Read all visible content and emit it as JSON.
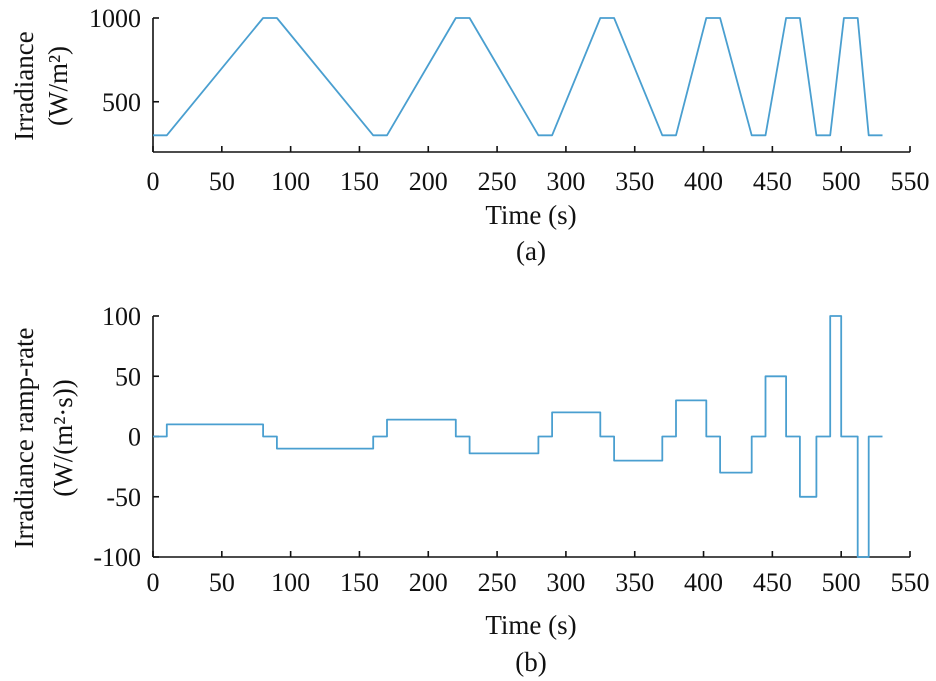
{
  "colors": {
    "series": "#4a9fd0",
    "axis": "#111111"
  },
  "chart_data": [
    {
      "type": "line",
      "caption": "(a)",
      "xlabel": "Time (s)",
      "ylabel": [
        "Irradiance",
        "(W/m²)"
      ],
      "xlim": [
        0,
        550
      ],
      "ylim": [
        200,
        1000
      ],
      "xticks": [
        0,
        50,
        100,
        150,
        200,
        250,
        300,
        350,
        400,
        450,
        500,
        550
      ],
      "xtick_labels": [
        "0",
        "50",
        "100",
        "150",
        "200",
        "250",
        "300",
        "350",
        "400",
        "450",
        "500",
        "550"
      ],
      "yticks": [
        500,
        1000
      ],
      "ytick_labels": [
        "500",
        "1000"
      ],
      "grid": false,
      "x": [
        0,
        10,
        80,
        90,
        160,
        170,
        220,
        230,
        280,
        290,
        325,
        335,
        370,
        380,
        402,
        412,
        435,
        445,
        460,
        470,
        482,
        492,
        502,
        512,
        520,
        530
      ],
      "y": [
        300,
        300,
        1000,
        1000,
        300,
        300,
        1000,
        1000,
        300,
        300,
        1000,
        1000,
        300,
        300,
        1000,
        1000,
        300,
        300,
        1000,
        1000,
        300,
        300,
        1000,
        1000,
        300,
        300
      ]
    },
    {
      "type": "line",
      "caption": "(b)",
      "xlabel": "Time (s)",
      "ylabel": [
        "Irradiance ramp-rate",
        "(W/(m²·s))"
      ],
      "xlim": [
        0,
        550
      ],
      "ylim": [
        -100,
        100
      ],
      "xticks": [
        0,
        50,
        100,
        150,
        200,
        250,
        300,
        350,
        400,
        450,
        500,
        550
      ],
      "xtick_labels": [
        "0",
        "50",
        "100",
        "150",
        "200",
        "250",
        "300",
        "350",
        "400",
        "450",
        "500",
        "550"
      ],
      "yticks": [
        100,
        50,
        0,
        -50,
        -100
      ],
      "ytick_labels": [
        "100",
        "50",
        "0",
        "-50",
        "-100"
      ],
      "grid": false,
      "x": [
        0,
        10,
        10,
        80,
        80,
        90,
        90,
        160,
        160,
        170,
        170,
        220,
        220,
        230,
        230,
        280,
        280,
        290,
        290,
        325,
        325,
        335,
        335,
        370,
        370,
        380,
        380,
        402,
        402,
        412,
        412,
        435,
        435,
        445,
        445,
        460,
        460,
        470,
        470,
        482,
        482,
        492,
        492,
        500,
        500,
        512,
        512,
        520,
        520,
        530
      ],
      "y": [
        0,
        0,
        10,
        10,
        0,
        0,
        -10,
        -10,
        0,
        0,
        14,
        14,
        0,
        0,
        -14,
        -14,
        0,
        0,
        20,
        20,
        0,
        0,
        -20,
        -20,
        0,
        0,
        30,
        30,
        0,
        0,
        -30,
        -30,
        0,
        0,
        50,
        50,
        0,
        0,
        -50,
        -50,
        0,
        0,
        100,
        100,
        0,
        0,
        -100,
        -100,
        0,
        0
      ]
    }
  ]
}
